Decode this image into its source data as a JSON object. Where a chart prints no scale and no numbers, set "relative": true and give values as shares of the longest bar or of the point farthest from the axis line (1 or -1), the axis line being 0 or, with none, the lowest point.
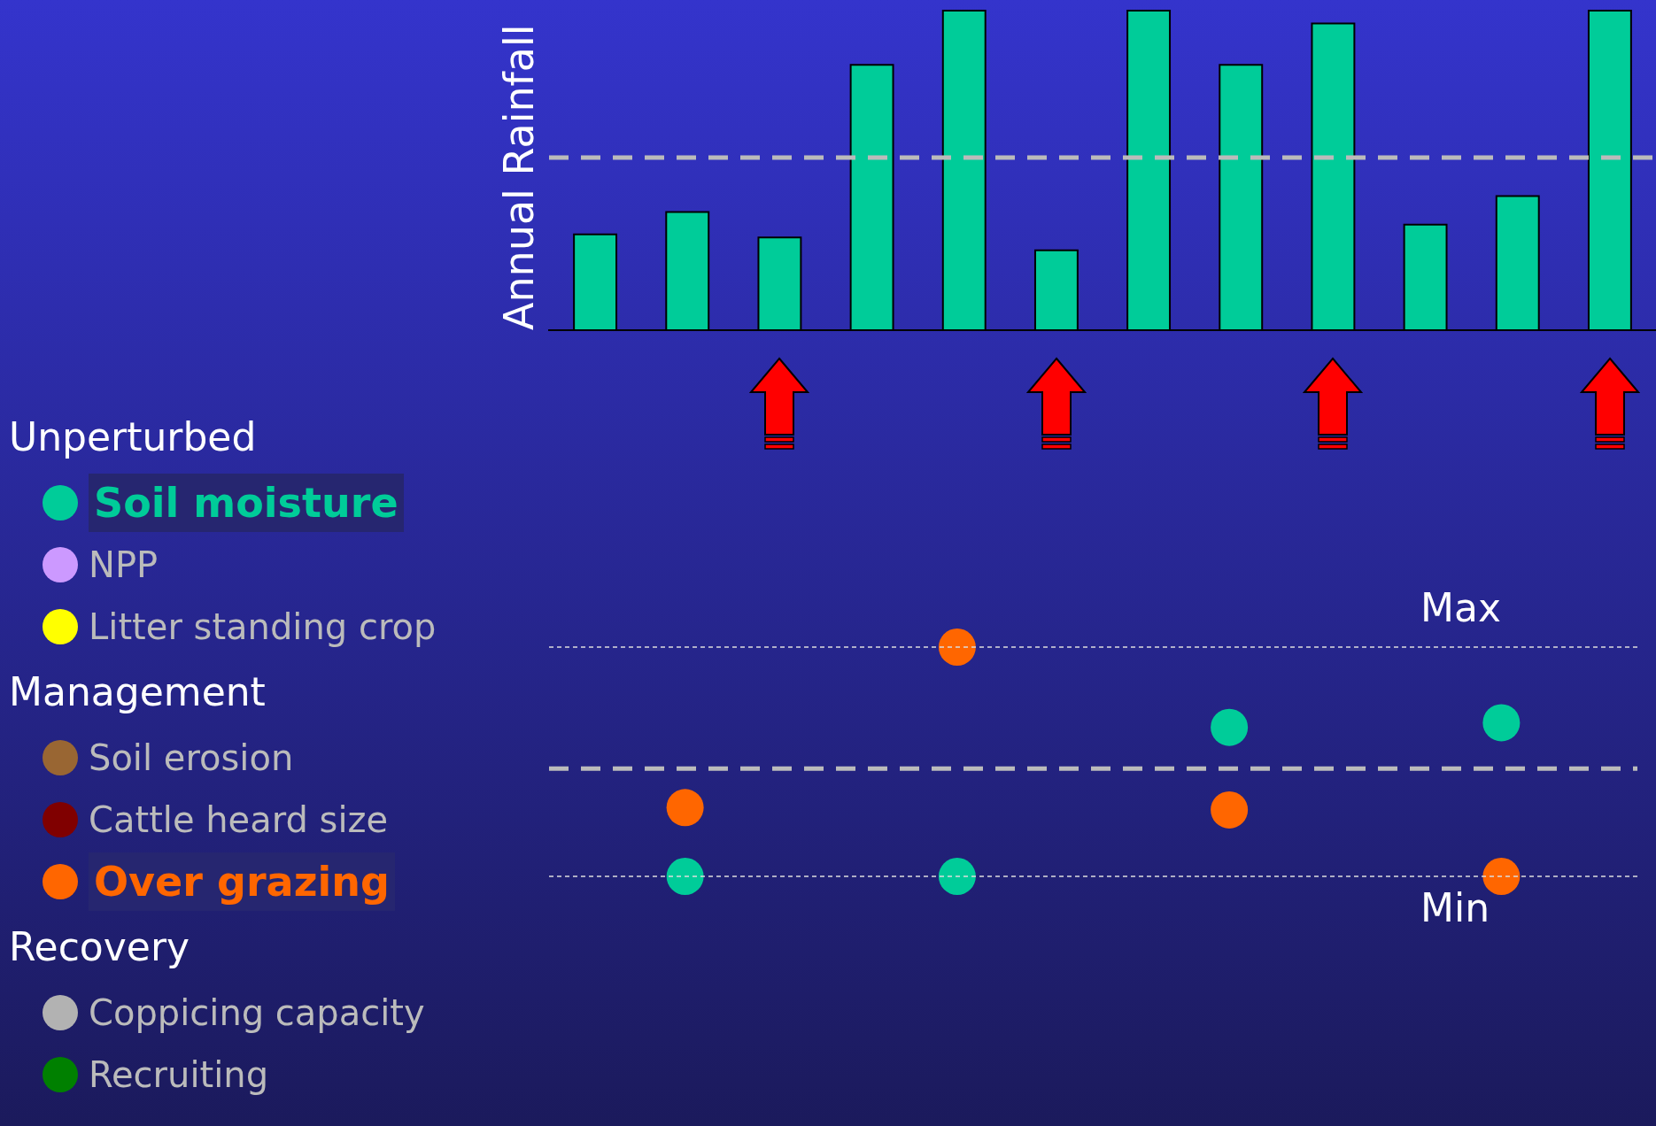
{
  "chart_data": [
    {
      "type": "bar",
      "ylabel": "Annual Rainfall",
      "relative": true,
      "categories": [
        null,
        null,
        null,
        null,
        null,
        null,
        null,
        null,
        null,
        null,
        null,
        null
      ],
      "values": [
        0.3,
        0.37,
        0.29,
        0.83,
        1,
        0.25,
        1,
        0.83,
        0.96,
        0.33,
        0.42,
        1
      ],
      "color": "#00cc99",
      "ref_lines": [
        {
          "axis": "y",
          "value": 0.54,
          "color": "#bbbbbb",
          "line_style": "dashed"
        }
      ]
    },
    {
      "type": "scatter",
      "categories": [
        null,
        null,
        null,
        null,
        null,
        null,
        null,
        null,
        null,
        null,
        null,
        null
      ],
      "relative": true,
      "legend": "left",
      "marker": "circle",
      "annotations": [
        "Unperturbed",
        "Management",
        "Recovery"
      ],
      "ref_lines": [
        {
          "axis": "y",
          "value": 1,
          "label": "Max",
          "color": "#dddddd",
          "line_style": "dotted"
        },
        {
          "axis": "y",
          "value": 0,
          "label": "Min",
          "color": "#dddddd",
          "line_style": "dotted"
        },
        {
          "axis": "y",
          "value": 0.47,
          "color": "#bbbbbb",
          "line_style": "dashed"
        }
      ],
      "series": [
        {
          "name": "Soil moisture",
          "color": "#00cc99",
          "values": [
            null,
            0,
            null,
            null,
            0,
            null,
            null,
            0.65,
            null,
            null,
            0.67,
            null
          ]
        },
        {
          "name": "NPP",
          "color": "#cc99ff",
          "values": [
            null,
            null,
            null,
            null,
            null,
            null,
            null,
            null,
            null,
            null,
            null,
            null
          ]
        },
        {
          "name": "Litter standing crop",
          "color": "#ffff00",
          "values": [
            null,
            null,
            null,
            null,
            null,
            null,
            null,
            null,
            null,
            null,
            null,
            null
          ]
        },
        {
          "name": "Soil erosion",
          "color": "#996633",
          "values": [
            null,
            null,
            null,
            null,
            null,
            null,
            null,
            null,
            null,
            null,
            null,
            null
          ]
        },
        {
          "name": "Cattle heard size",
          "color": "#800000",
          "values": [
            null,
            null,
            null,
            null,
            null,
            null,
            null,
            null,
            null,
            null,
            null,
            null
          ]
        },
        {
          "name": "Over grazing",
          "color": "#ff6600",
          "values": [
            null,
            0.3,
            null,
            null,
            1,
            null,
            null,
            0.29,
            null,
            null,
            0,
            null
          ]
        },
        {
          "name": "Coppicing capacity",
          "color": "#b2b2b2",
          "values": [
            null,
            null,
            null,
            null,
            null,
            null,
            null,
            null,
            null,
            null,
            null,
            null
          ]
        },
        {
          "name": "Recruiting",
          "color": "#008000",
          "values": [
            null,
            null,
            null,
            null,
            null,
            null,
            null,
            null,
            null,
            null,
            null,
            null
          ]
        }
      ]
    }
  ]
}
